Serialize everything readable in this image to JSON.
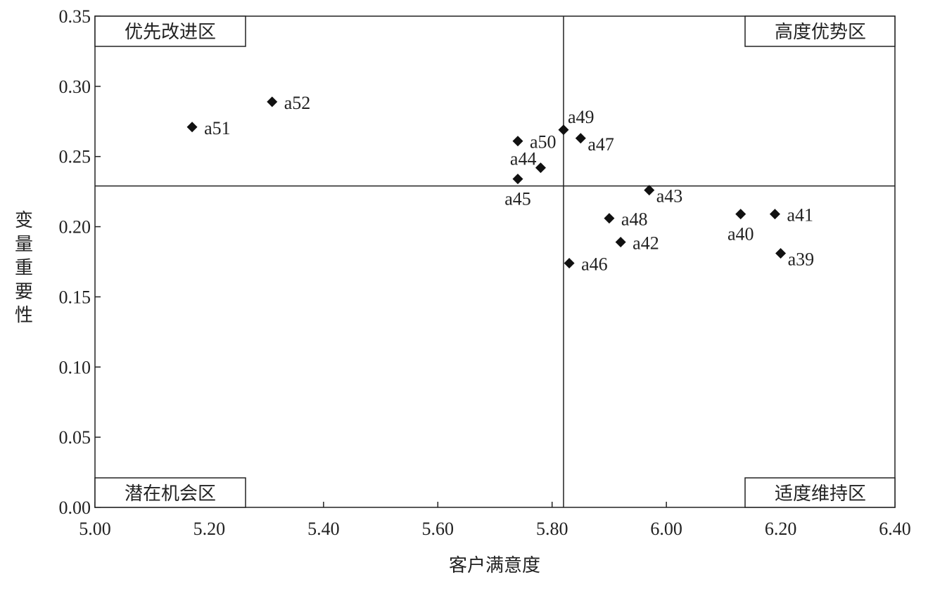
{
  "chart_data": {
    "type": "scatter",
    "xlabel": "客户满意度",
    "ylabel": "变量重要性",
    "xlim": [
      5.0,
      6.4
    ],
    "ylim": [
      0.0,
      0.35
    ],
    "x_ticks": [
      "5.00",
      "5.20",
      "5.40",
      "5.60",
      "5.80",
      "6.00",
      "6.20",
      "6.40"
    ],
    "y_ticks": [
      "0.00",
      "0.05",
      "0.10",
      "0.15",
      "0.20",
      "0.25",
      "0.30",
      "0.35"
    ],
    "x_divider": 5.82,
    "y_divider": 0.229,
    "grid": false,
    "marker": "diamond",
    "quadrants": {
      "top_left": "优先改进区",
      "top_right": "高度优势区",
      "bottom_left": "潜在机会区",
      "bottom_right": "适度维持区"
    },
    "points": [
      {
        "label": "a51",
        "x": 5.17,
        "y": 0.271,
        "anchor": "right"
      },
      {
        "label": "a52",
        "x": 5.31,
        "y": 0.289,
        "anchor": "right"
      },
      {
        "label": "a50",
        "x": 5.74,
        "y": 0.261,
        "anchor": "right"
      },
      {
        "label": "a44",
        "x": 5.78,
        "y": 0.242,
        "anchor": "above-left"
      },
      {
        "label": "a45",
        "x": 5.74,
        "y": 0.234,
        "anchor": "below"
      },
      {
        "label": "a49",
        "x": 5.82,
        "y": 0.269,
        "anchor": "above-right"
      },
      {
        "label": "a47",
        "x": 5.85,
        "y": 0.263,
        "anchor": "right-low"
      },
      {
        "label": "a43",
        "x": 5.97,
        "y": 0.226,
        "anchor": "right-low"
      },
      {
        "label": "a48",
        "x": 5.9,
        "y": 0.206,
        "anchor": "right"
      },
      {
        "label": "a42",
        "x": 5.92,
        "y": 0.189,
        "anchor": "right"
      },
      {
        "label": "a46",
        "x": 5.83,
        "y": 0.174,
        "anchor": "right"
      },
      {
        "label": "a40",
        "x": 6.13,
        "y": 0.209,
        "anchor": "below"
      },
      {
        "label": "a41",
        "x": 6.19,
        "y": 0.209,
        "anchor": "right"
      },
      {
        "label": "a39",
        "x": 6.2,
        "y": 0.181,
        "anchor": "right-low"
      }
    ]
  }
}
